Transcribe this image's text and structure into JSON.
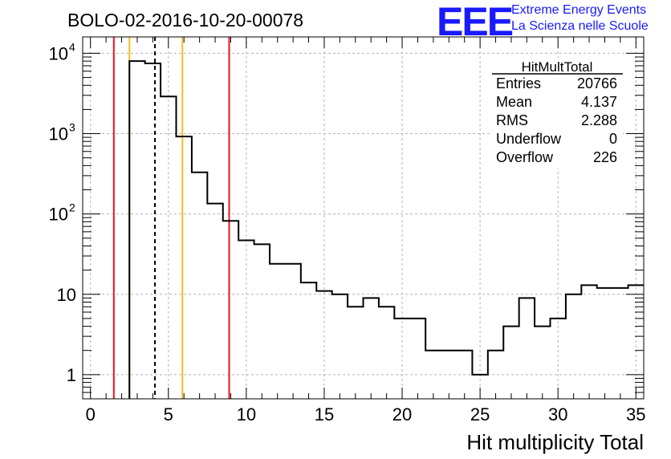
{
  "header": {
    "run_title": "BOLO-02-2016-10-20-00078",
    "logo_text": "EEE",
    "logo_line1": "Extreme Energy Events",
    "logo_line2": "La Scienza nelle Scuole",
    "logo_color": "#1a1aff"
  },
  "stats_box": {
    "title": "HitMultTotal",
    "rows": [
      {
        "label": "Entries",
        "value": "20766"
      },
      {
        "label": "Mean",
        "value": "4.137"
      },
      {
        "label": "RMS",
        "value": "2.288"
      },
      {
        "label": "Underflow",
        "value": "0"
      },
      {
        "label": "Overflow",
        "value": "226"
      }
    ]
  },
  "chart_data": {
    "type": "histogram",
    "xlabel": "Hit multiplicity Total",
    "ylabel": "",
    "xlim": [
      -0.5,
      35.5
    ],
    "ylim": [
      0.5,
      16000
    ],
    "yscale": "log",
    "grid": true,
    "x_ticks": [
      0,
      5,
      10,
      15,
      20,
      25,
      30,
      35
    ],
    "y_ticks": [
      {
        "value": 1,
        "label": "1"
      },
      {
        "value": 10,
        "label": "10"
      },
      {
        "value": 100,
        "base": "10",
        "exp": "2"
      },
      {
        "value": 1000,
        "base": "10",
        "exp": "3"
      },
      {
        "value": 10000,
        "base": "10",
        "exp": "4"
      }
    ],
    "bin_edges": [
      2.5,
      3.5,
      4.5,
      5.5,
      6.5,
      7.5,
      8.5,
      9.5,
      10.5,
      11.5,
      12.5,
      13.5,
      14.5,
      15.5,
      16.5,
      17.5,
      18.5,
      19.5,
      20.5,
      21.5,
      22.5,
      23.5,
      24.5,
      25.5,
      26.5,
      27.5,
      28.5,
      29.5,
      30.5,
      31.5,
      32.5,
      33.5,
      34.5,
      35.5
    ],
    "counts": [
      8000,
      7500,
      2900,
      920,
      330,
      135,
      82,
      47,
      42,
      24,
      24,
      14,
      11,
      10,
      7,
      9,
      7,
      5,
      5,
      2,
      2,
      2,
      1,
      2,
      4,
      9,
      4,
      5,
      10,
      13,
      12,
      12,
      13
    ],
    "vertical_lines": [
      {
        "x": 1.5,
        "color": "#e8141e",
        "style": "solid"
      },
      {
        "x": 2.5,
        "color": "#f5be1e",
        "style": "solid"
      },
      {
        "x": 4.137,
        "color": "#000000",
        "style": "dashed"
      },
      {
        "x": 5.9,
        "color": "#f5be1e",
        "style": "solid"
      },
      {
        "x": 8.9,
        "color": "#e8141e",
        "style": "solid"
      }
    ]
  }
}
